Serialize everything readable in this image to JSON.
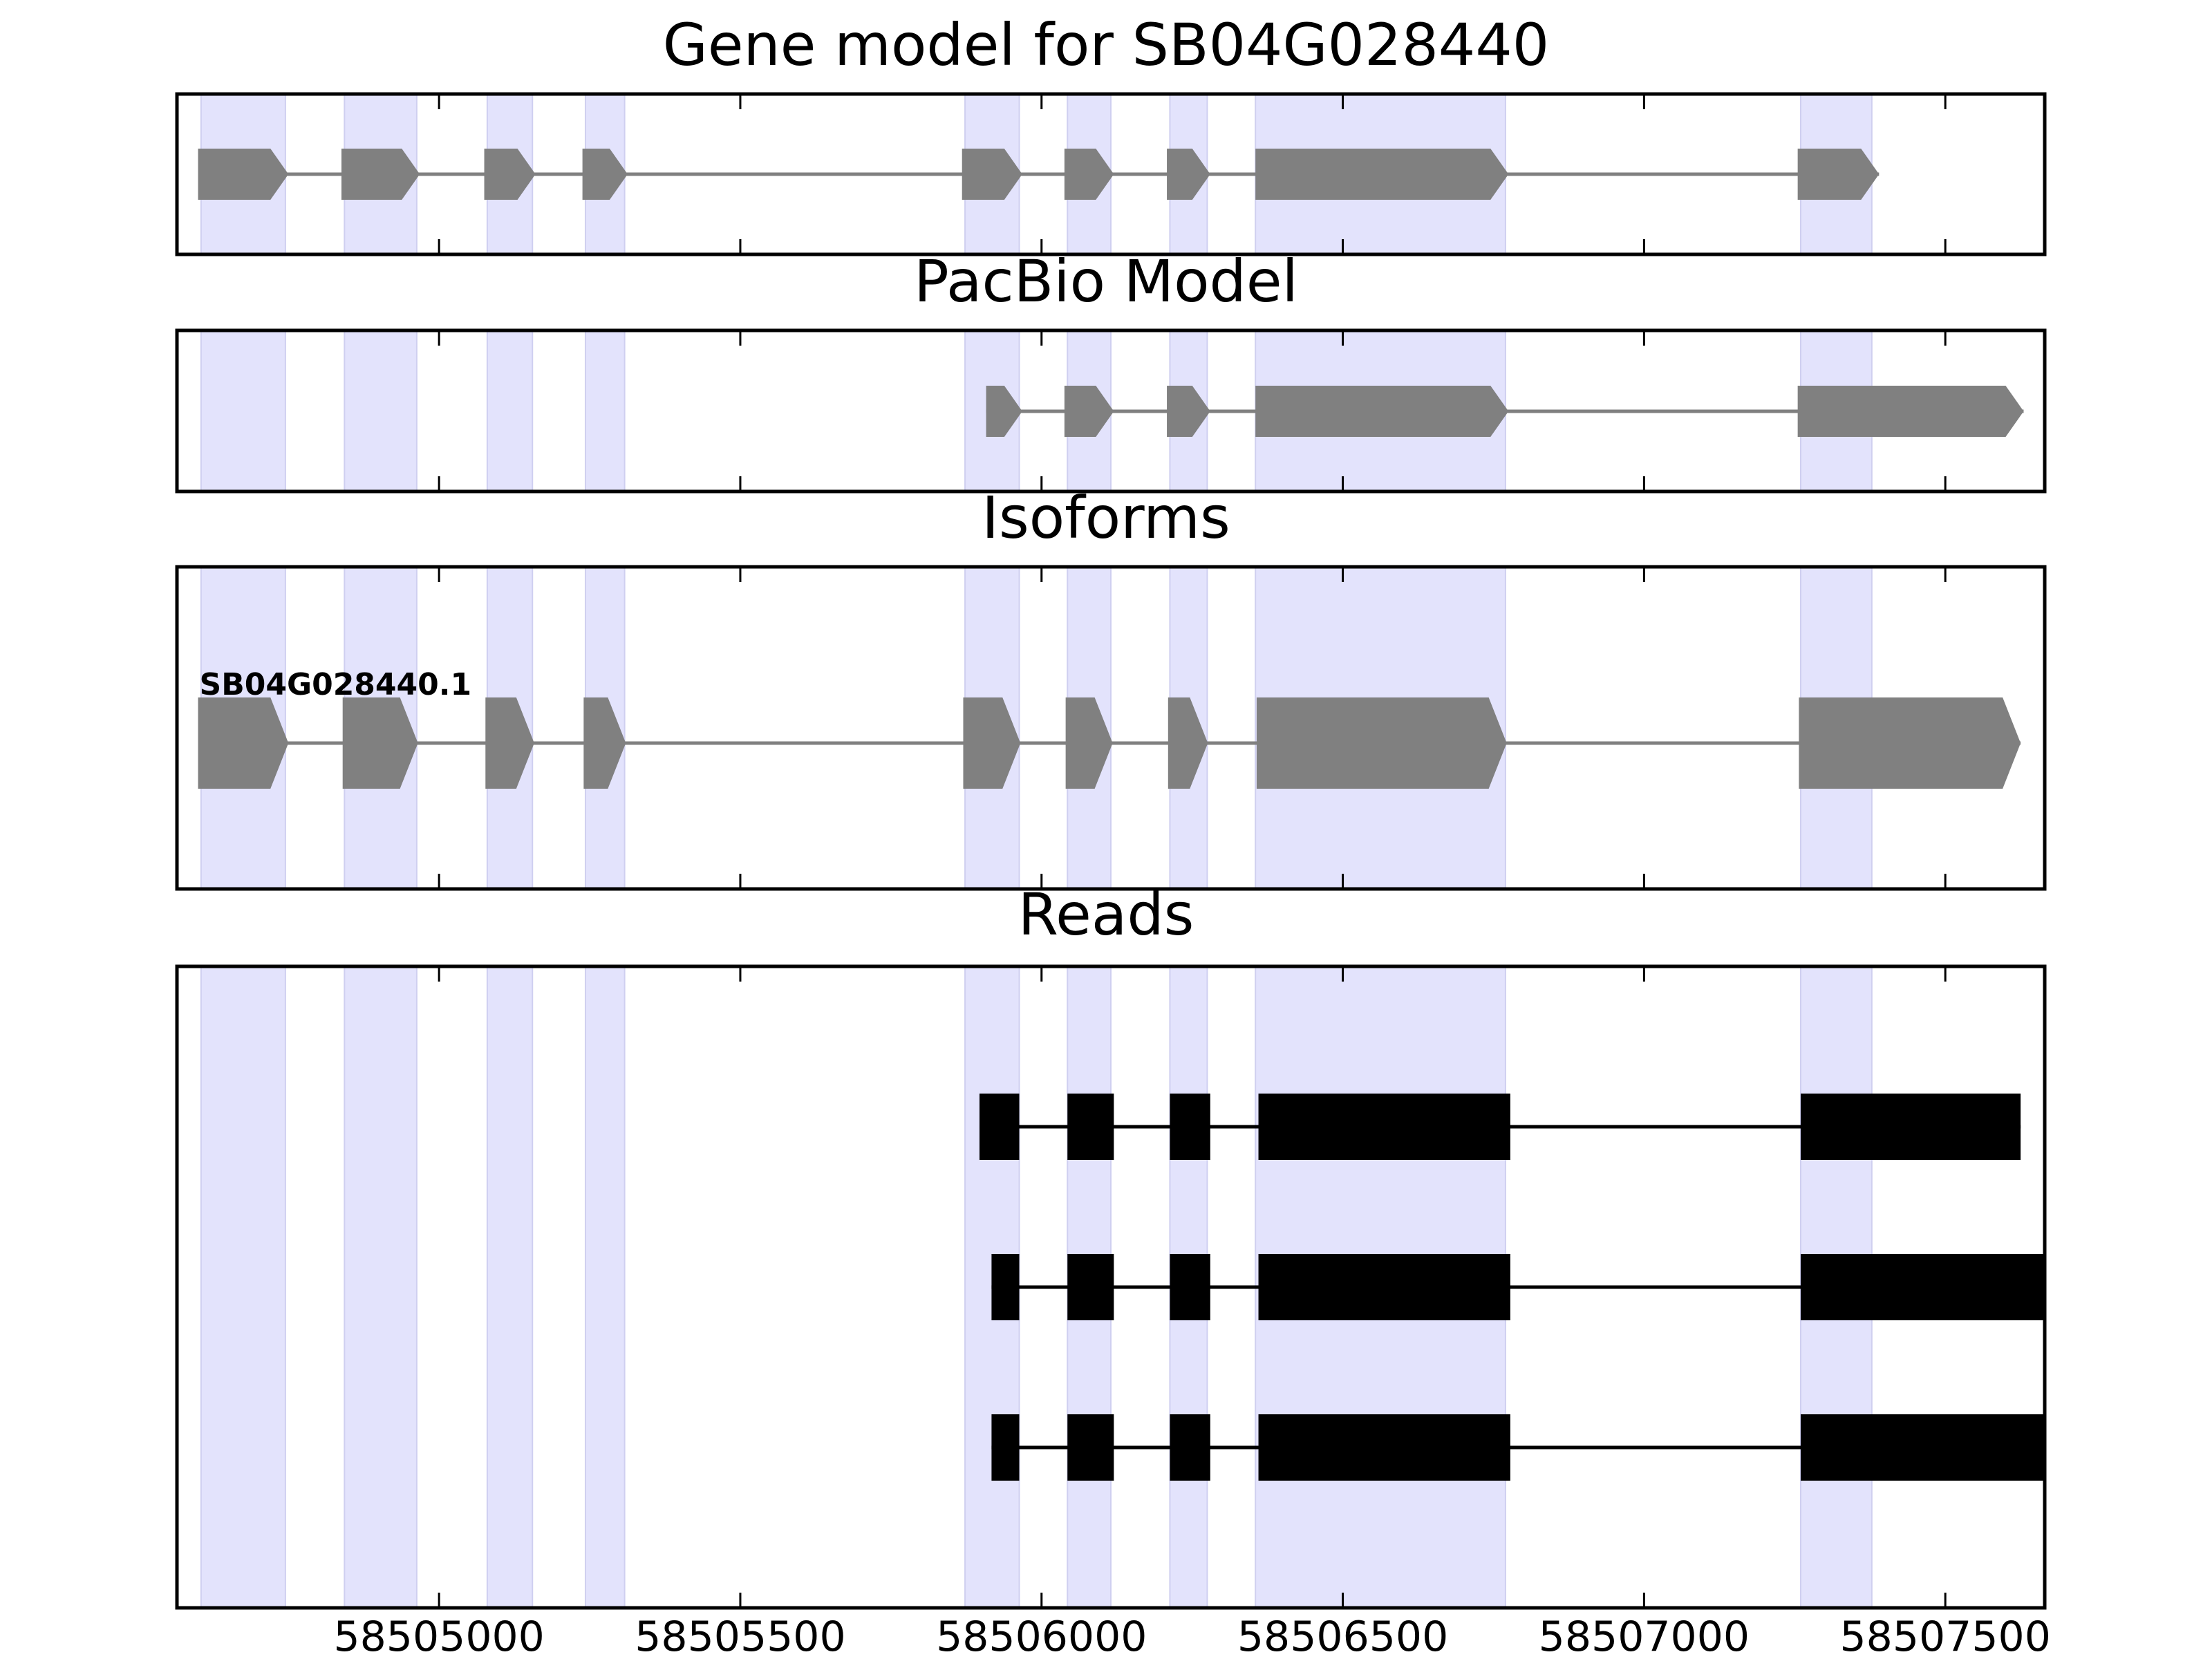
{
  "chart_data": {
    "type": "gene-structure",
    "x_axis": {
      "range": [
        58504565,
        58507665
      ],
      "ticks": [
        58505000,
        58505500,
        58506000,
        58506500,
        58507000,
        58507500
      ],
      "tick_labels": [
        "58505000",
        "58505500",
        "58506000",
        "58506500",
        "58507000",
        "58507500"
      ]
    },
    "highlight_regions": [
      [
        58504605,
        58504745
      ],
      [
        58504843,
        58504963
      ],
      [
        58505080,
        58505155
      ],
      [
        58505243,
        58505308
      ],
      [
        58505873,
        58505963
      ],
      [
        58506043,
        58506115
      ],
      [
        58506213,
        58506275
      ],
      [
        58506355,
        58506770
      ],
      [
        58507260,
        58507378
      ]
    ],
    "colors": {
      "highlight": "#e3e3fc",
      "highlight_edge": "#cfcff0",
      "model_feature": "#808080",
      "read_feature": "#000000",
      "frame": "#000000"
    },
    "panels": [
      {
        "title": "Gene model for SB04G028440",
        "models": [
          {
            "label": "",
            "exons": [
              [
                58504600,
                58504750
              ],
              [
                58504838,
                58504968
              ],
              [
                58505075,
                58505160
              ],
              [
                58505238,
                58505313
              ],
              [
                58505868,
                58505968
              ],
              [
                58506038,
                58506120
              ],
              [
                58506208,
                58506280
              ],
              [
                58506355,
                58506775
              ],
              [
                58507255,
                58507390
              ]
            ]
          }
        ]
      },
      {
        "title": "PacBio Model",
        "models": [
          {
            "label": "",
            "exons": [
              [
                58505908,
                58505968
              ],
              [
                58506038,
                58506120
              ],
              [
                58506208,
                58506280
              ],
              [
                58506355,
                58506775
              ],
              [
                58507255,
                58507630
              ]
            ]
          }
        ]
      },
      {
        "title": "Isoforms",
        "models": [
          {
            "label": "SB04G028440.1",
            "exons": [
              [
                58504600,
                58504750
              ],
              [
                58504840,
                58504965
              ],
              [
                58505077,
                58505158
              ],
              [
                58505240,
                58505310
              ],
              [
                58505870,
                58505965
              ],
              [
                58506040,
                58506118
              ],
              [
                58506210,
                58506276
              ],
              [
                58506357,
                58506772
              ],
              [
                58507257,
                58507625
              ]
            ]
          }
        ]
      },
      {
        "title": "Reads",
        "reads": [
          {
            "exons": [
              [
                58505897,
                58505963
              ],
              [
                58506043,
                58506120
              ],
              [
                58506213,
                58506280
              ],
              [
                58506360,
                58506778
              ],
              [
                58507260,
                58507625
              ]
            ]
          },
          {
            "exons": [
              [
                58505917,
                58505963
              ],
              [
                58506043,
                58506120
              ],
              [
                58506213,
                58506280
              ],
              [
                58506360,
                58506778
              ],
              [
                58507260,
                58507665
              ]
            ]
          },
          {
            "exons": [
              [
                58505917,
                58505963
              ],
              [
                58506043,
                58506120
              ],
              [
                58506213,
                58506280
              ],
              [
                58506360,
                58506778
              ],
              [
                58507260,
                58507665
              ]
            ]
          }
        ]
      }
    ]
  }
}
